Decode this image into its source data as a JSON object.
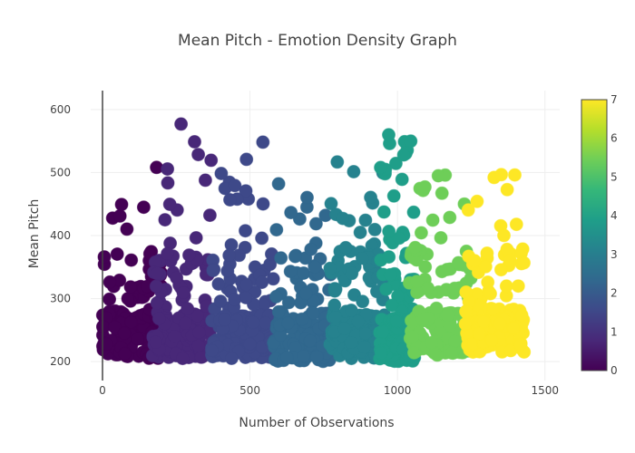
{
  "chart_data": {
    "type": "scatter",
    "title": "Mean Pitch - Emotion Density Graph",
    "xlabel": "Number of Observations",
    "ylabel": "Mean Pitch",
    "xlim": [
      -40,
      1550
    ],
    "ylim": [
      170,
      630
    ],
    "x_ticks": [
      0,
      500,
      1000,
      1500
    ],
    "y_ticks": [
      200,
      300,
      400,
      500,
      600
    ],
    "grid": true,
    "legend": "none",
    "colorbar": {
      "range": [
        0,
        7
      ],
      "ticks": [
        0,
        1,
        2,
        3,
        4,
        5,
        6,
        7
      ],
      "colorscale": "Viridis",
      "placement": "right"
    },
    "emotion_groups": [
      {
        "emotion": 0,
        "x_range": [
          0,
          200
        ],
        "y_range": [
          205,
          520
        ],
        "color": "#440154"
      },
      {
        "emotion": 1,
        "x_range": [
          170,
          370
        ],
        "y_range": [
          205,
          590
        ],
        "color": "#482878"
      },
      {
        "emotion": 2,
        "x_range": [
          370,
          580
        ],
        "y_range": [
          205,
          550
        ],
        "color": "#3e4989"
      },
      {
        "emotion": 3,
        "x_range": [
          580,
          780
        ],
        "y_range": [
          200,
          485
        ],
        "color": "#31688e"
      },
      {
        "emotion": 4,
        "x_range": [
          770,
          960
        ],
        "y_range": [
          205,
          520
        ],
        "color": "#26828e"
      },
      {
        "emotion": 5,
        "x_range": [
          940,
          1060
        ],
        "y_range": [
          200,
          560
        ],
        "color": "#1f9e89"
      },
      {
        "emotion": 6,
        "x_range": [
          1040,
          1250
        ],
        "y_range": [
          210,
          505
        ],
        "color": "#6ece58"
      },
      {
        "emotion": 7,
        "x_range": [
          1230,
          1430
        ],
        "y_range": [
          215,
          520
        ],
        "color": "#fde725"
      }
    ]
  }
}
